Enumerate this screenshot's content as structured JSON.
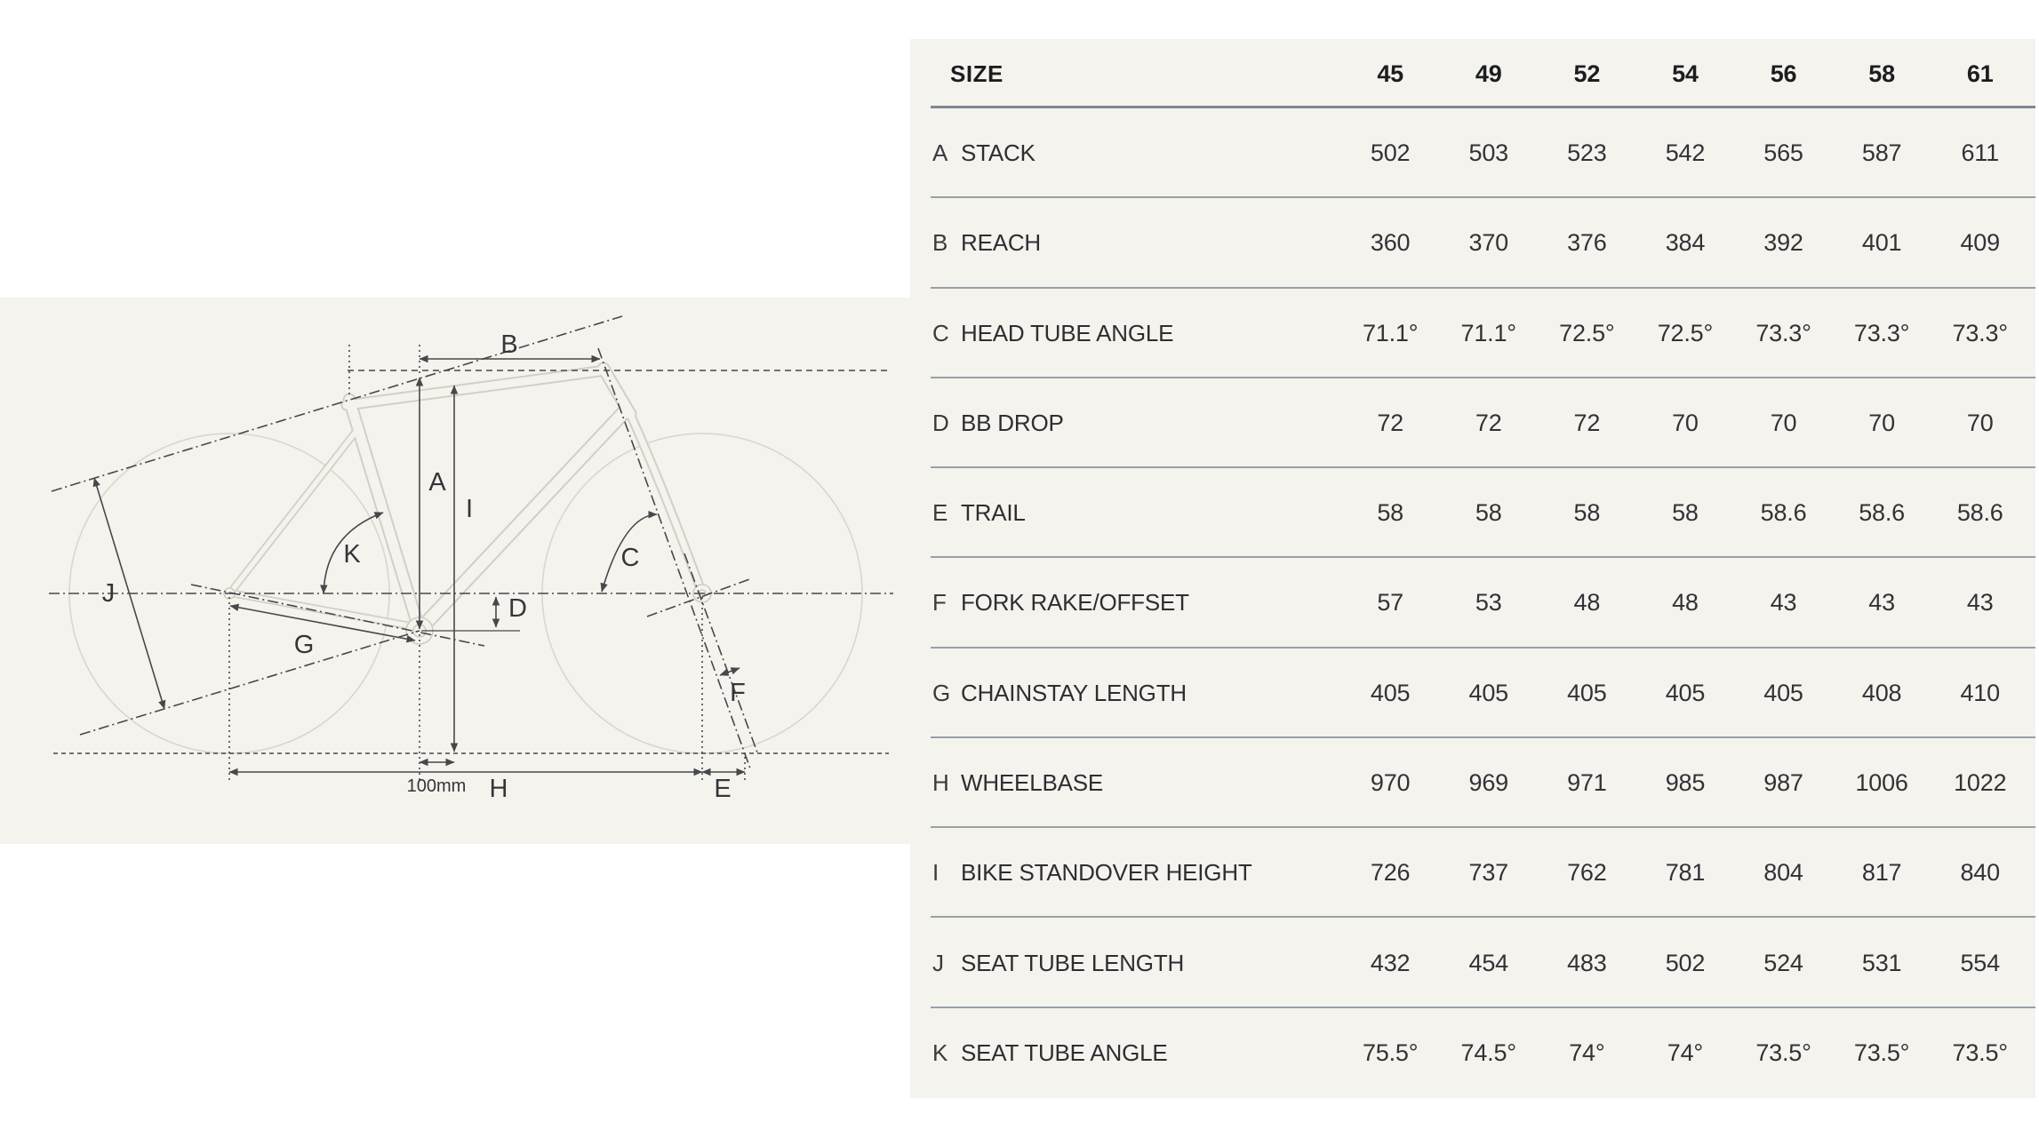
{
  "page": {
    "background": "#ffffff",
    "panel_background": "#f5f3ed"
  },
  "diagram": {
    "description": "bike frame geometry line drawing with dimension callouts",
    "labels": {
      "a": "A",
      "b": "B",
      "c": "C",
      "d": "D",
      "e": "E",
      "f": "F",
      "g": "G",
      "h": "H",
      "i": "I",
      "j": "J",
      "k": "K"
    },
    "scale_label": "100mm",
    "colors": {
      "frame_outline": "#d2cfc6",
      "wheel_outline": "#d9d6cd",
      "dimension_line": "#46484c",
      "label_text": "#35353a"
    }
  },
  "table": {
    "header": {
      "size_label": "SIZE",
      "columns": [
        "45",
        "49",
        "52",
        "54",
        "56",
        "58",
        "61"
      ]
    },
    "rows": [
      {
        "letter": "A",
        "label": "STACK",
        "values": [
          "502",
          "503",
          "523",
          "542",
          "565",
          "587",
          "611"
        ]
      },
      {
        "letter": "B",
        "label": "REACH",
        "values": [
          "360",
          "370",
          "376",
          "384",
          "392",
          "401",
          "409"
        ]
      },
      {
        "letter": "C",
        "label": "HEAD TUBE ANGLE",
        "values": [
          "71.1°",
          "71.1°",
          "72.5°",
          "72.5°",
          "73.3°",
          "73.3°",
          "73.3°"
        ]
      },
      {
        "letter": "D",
        "label": "BB DROP",
        "values": [
          "72",
          "72",
          "72",
          "70",
          "70",
          "70",
          "70"
        ]
      },
      {
        "letter": "E",
        "label": "TRAIL",
        "values": [
          "58",
          "58",
          "58",
          "58",
          "58.6",
          "58.6",
          "58.6"
        ]
      },
      {
        "letter": "F",
        "label": "FORK RAKE/OFFSET",
        "values": [
          "57",
          "53",
          "48",
          "48",
          "43",
          "43",
          "43"
        ]
      },
      {
        "letter": "G",
        "label": "CHAINSTAY LENGTH",
        "values": [
          "405",
          "405",
          "405",
          "405",
          "405",
          "408",
          "410"
        ]
      },
      {
        "letter": "H",
        "label": "WHEELBASE",
        "values": [
          "970",
          "969",
          "971",
          "985",
          "987",
          "1006",
          "1022"
        ]
      },
      {
        "letter": "I",
        "label": "BIKE STANDOVER HEIGHT",
        "values": [
          "726",
          "737",
          "762",
          "781",
          "804",
          "817",
          "840"
        ]
      },
      {
        "letter": "J",
        "label": "SEAT TUBE LENGTH",
        "values": [
          "432",
          "454",
          "483",
          "502",
          "524",
          "531",
          "554"
        ]
      },
      {
        "letter": "K",
        "label": "SEAT TUBE ANGLE",
        "values": [
          "75.5°",
          "74.5°",
          "74°",
          "74°",
          "73.5°",
          "73.5°",
          "73.5°"
        ]
      }
    ]
  }
}
